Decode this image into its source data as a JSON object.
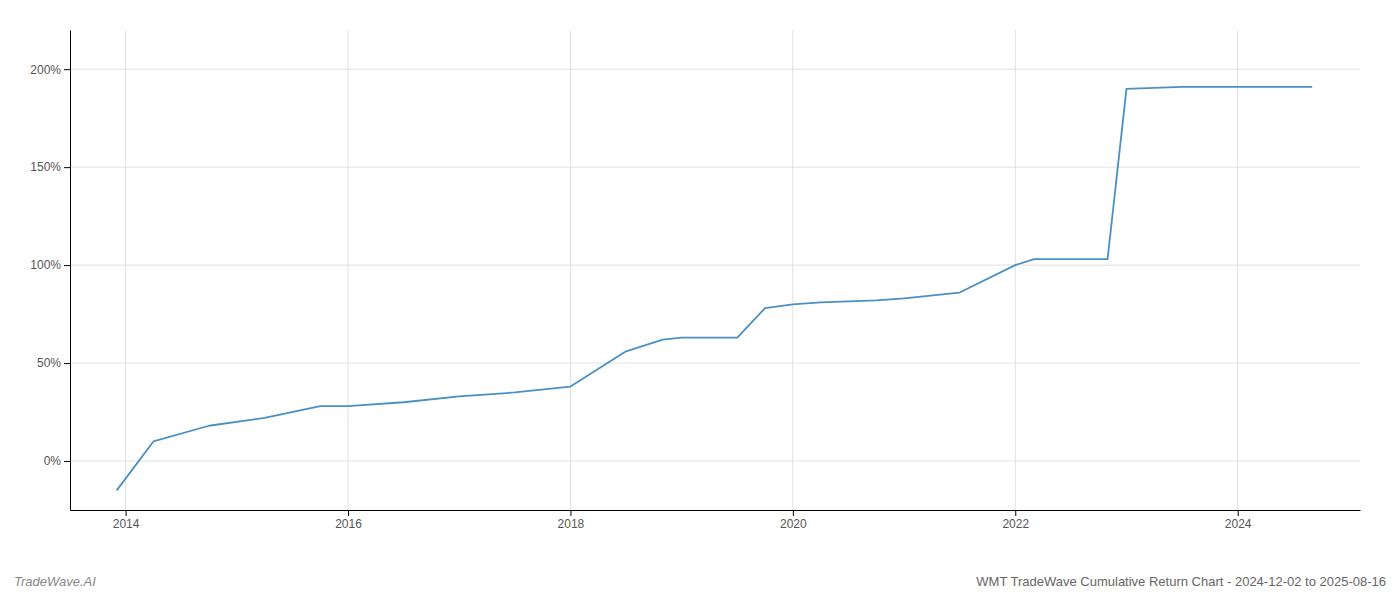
{
  "chart_data": {
    "type": "line",
    "title": "WMT TradeWave Cumulative Return Chart - 2024-12-02 to 2025-08-16",
    "annotations": [
      "TradeWave.AI"
    ],
    "color": "#4a90c4",
    "x": [
      2013.92,
      2014.25,
      2014.75,
      2015.25,
      2015.75,
      2016.0,
      2016.5,
      2017.0,
      2017.5,
      2018.0,
      2018.5,
      2018.83,
      2019.0,
      2019.5,
      2019.75,
      2020.0,
      2020.25,
      2020.75,
      2021.0,
      2021.5,
      2022.0,
      2022.17,
      2022.5,
      2022.83,
      2023.0,
      2023.5,
      2024.0,
      2024.5,
      2024.67
    ],
    "values": [
      -15,
      10,
      18,
      22,
      28,
      28,
      30,
      33,
      35,
      38,
      56,
      62,
      63,
      63,
      78,
      80,
      81,
      82,
      83,
      86,
      100,
      103,
      103,
      103,
      190,
      191,
      191,
      191,
      191
    ],
    "xlim": [
      2013.5,
      2025.1
    ],
    "ylim": [
      -25,
      220
    ],
    "xticks": [
      2014,
      2016,
      2018,
      2020,
      2022,
      2024
    ],
    "yticks": [
      {
        "value": 0,
        "label": "0%"
      },
      {
        "value": 50,
        "label": "50%"
      },
      {
        "value": 100,
        "label": "100%"
      },
      {
        "value": 150,
        "label": "150%"
      },
      {
        "value": 200,
        "label": "200%"
      }
    ],
    "grid": true
  }
}
